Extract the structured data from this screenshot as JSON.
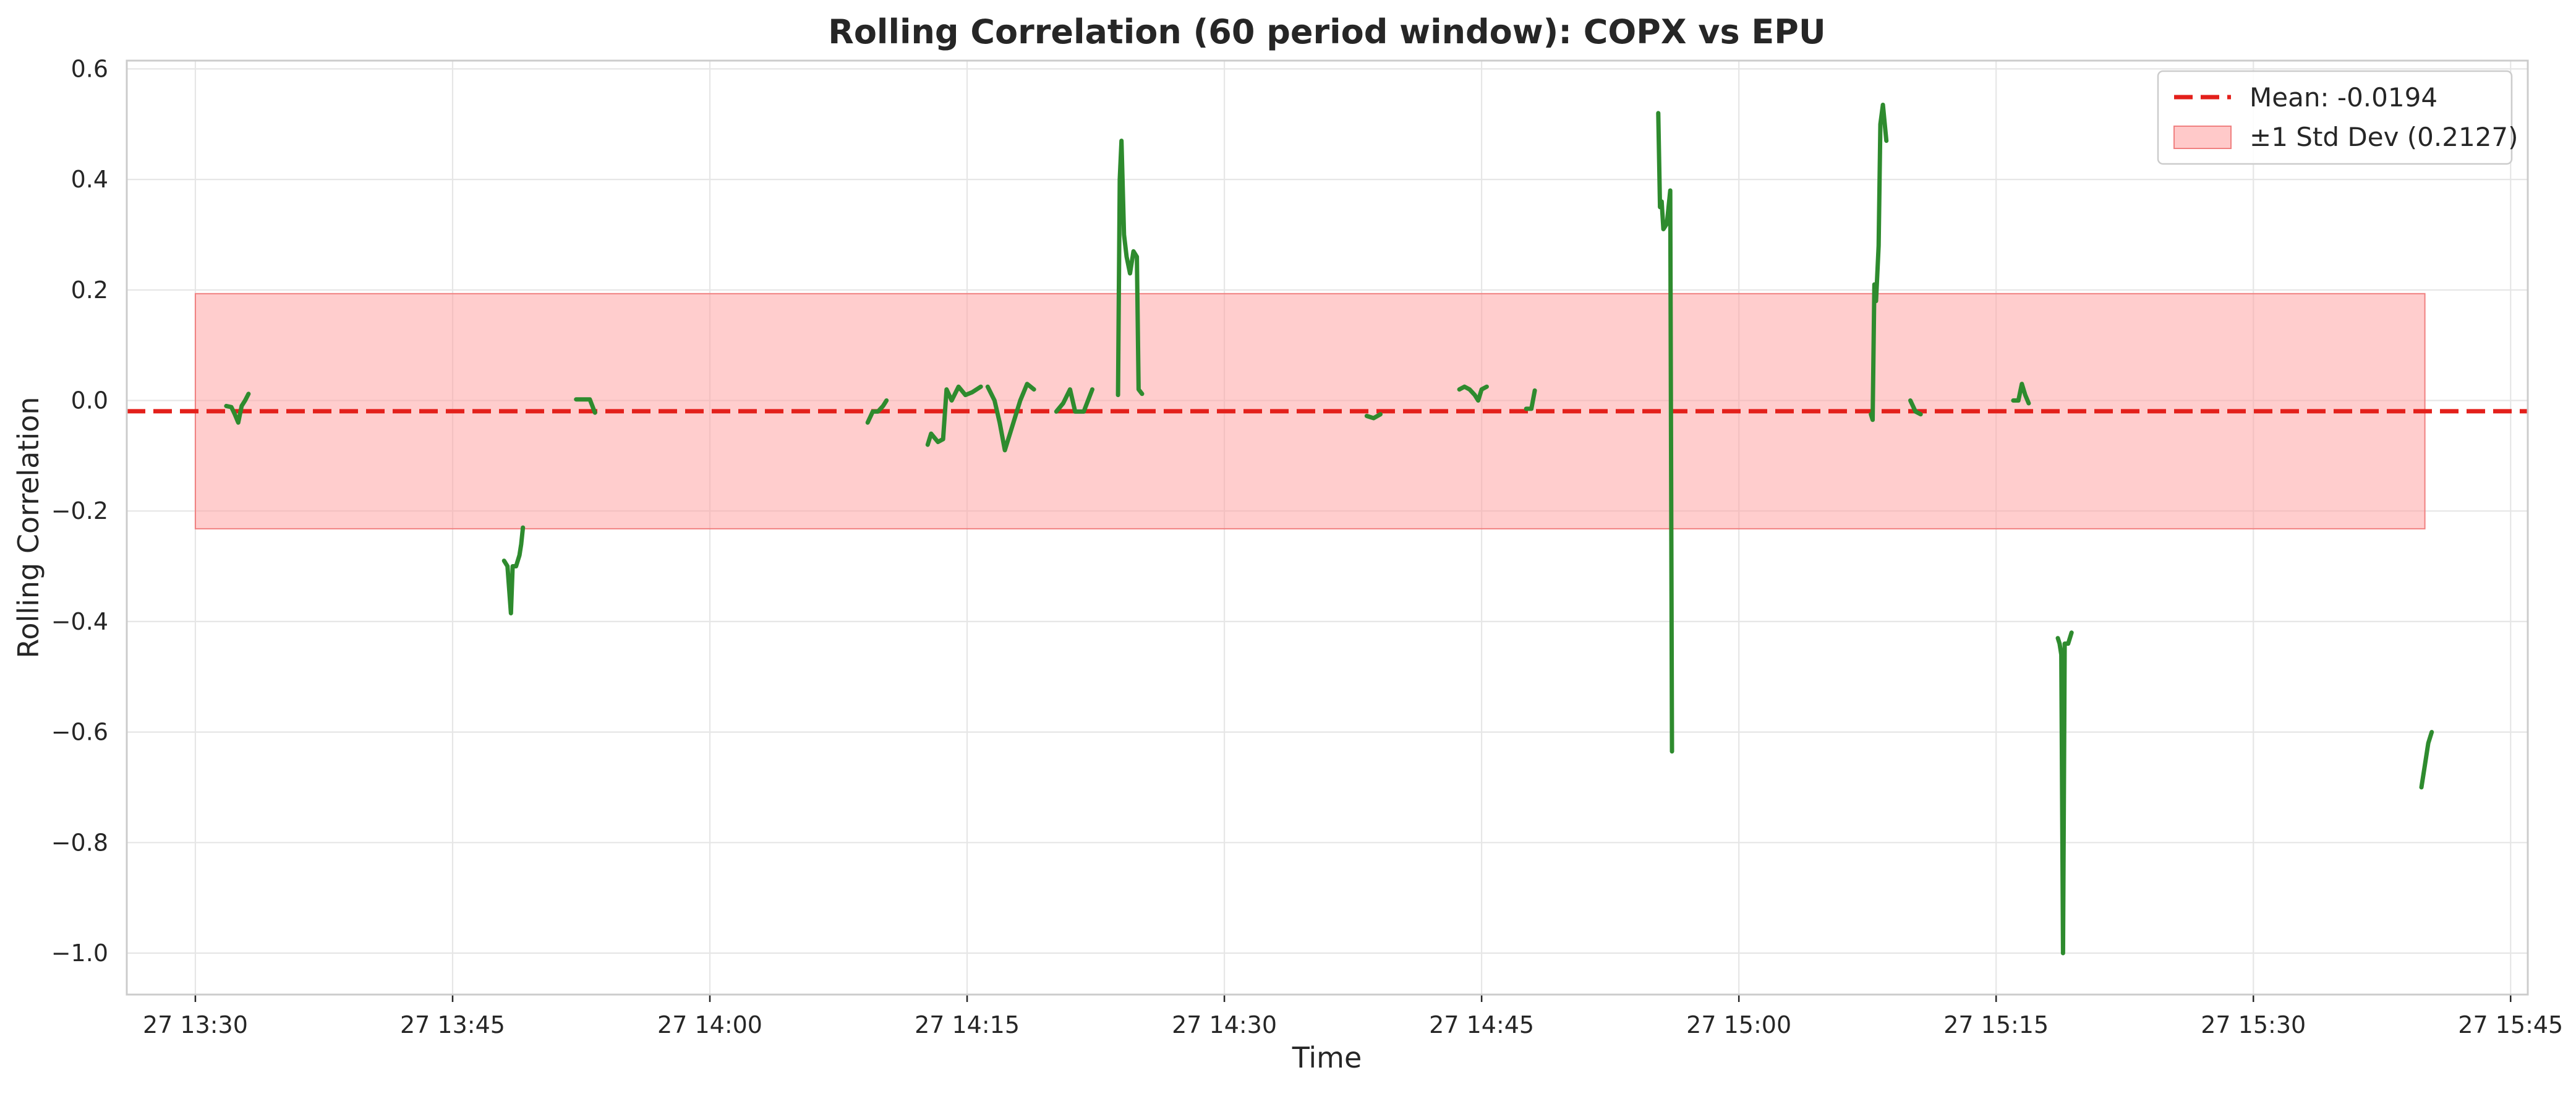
{
  "chart_data": {
    "type": "line",
    "title": "Rolling Correlation (60 period window): COPX vs EPU",
    "xlabel": "Time",
    "ylabel": "Rolling Correlation",
    "x_axis": {
      "unit": "minutes",
      "range": [
        "27 13:26",
        "27 15:46"
      ],
      "ticks": [
        {
          "t": "27 13:30",
          "label": "27 13:30"
        },
        {
          "t": "27 13:45",
          "label": "27 13:45"
        },
        {
          "t": "27 14:00",
          "label": "27 14:00"
        },
        {
          "t": "27 14:15",
          "label": "27 14:15"
        },
        {
          "t": "27 14:30",
          "label": "27 14:30"
        },
        {
          "t": "27 14:45",
          "label": "27 14:45"
        },
        {
          "t": "27 15:00",
          "label": "27 15:00"
        },
        {
          "t": "27 15:15",
          "label": "27 15:15"
        },
        {
          "t": "27 15:30",
          "label": "27 15:30"
        },
        {
          "t": "27 15:45",
          "label": "27 15:45"
        }
      ]
    },
    "y_axis": {
      "ylim": [
        -1.075,
        0.615
      ],
      "ticks": [
        0.6,
        0.4,
        0.2,
        0.0,
        -0.2,
        -0.4,
        -0.6,
        -0.8,
        -1.0
      ],
      "tick_labels": [
        "0.6",
        "0.4",
        "0.2",
        "0.0",
        "−0.2",
        "−0.4",
        "−0.6",
        "−0.8",
        "−1.0"
      ]
    },
    "grid": true,
    "legend_position": "top-right",
    "mean": {
      "label": "Mean: -0.0194",
      "value": -0.0194,
      "color": "#e3201b"
    },
    "std_band": {
      "label": "±1 Std Dev (0.2127)",
      "lower": -0.2321,
      "upper": 0.1933,
      "x_start": "27 13:30",
      "x_end": "27 15:40",
      "color": "#ff9c9c"
    },
    "series": [
      {
        "color": "#2e8b2e",
        "segments": [
          [
            [
              "27 13:31.8",
              -0.01
            ],
            [
              "27 13:32.1",
              -0.012
            ],
            [
              "27 13:32.3",
              -0.025
            ],
            [
              "27 13:32.5",
              -0.04
            ],
            [
              "27 13:32.7",
              -0.01
            ],
            [
              "27 13:32.9",
              0.0
            ],
            [
              "27 13:33.1",
              0.012
            ]
          ],
          [
            [
              "27 13:48.0",
              -0.29
            ],
            [
              "27 13:48.2",
              -0.3
            ],
            [
              "27 13:48.4",
              -0.385
            ],
            [
              "27 13:48.5",
              -0.3
            ],
            [
              "27 13:48.7",
              -0.3
            ],
            [
              "27 13:48.9",
              -0.28
            ],
            [
              "27 13:49.0",
              -0.26
            ],
            [
              "27 13:49.1",
              -0.23
            ]
          ],
          [
            [
              "27 13:52.2",
              0.002
            ],
            [
              "27 13:53.0",
              0.002
            ],
            [
              "27 13:53.3",
              -0.022
            ]
          ],
          [
            [
              "27 14:09.2",
              -0.04
            ],
            [
              "27 14:09.5",
              -0.02
            ],
            [
              "27 14:09.8",
              -0.02
            ],
            [
              "27 14:10.1",
              -0.01
            ],
            [
              "27 14:10.3",
              0.0
            ]
          ],
          [
            [
              "27 14:12.7",
              -0.08
            ],
            [
              "27 14:12.9",
              -0.06
            ],
            [
              "27 14:13.3",
              -0.075
            ],
            [
              "27 14:13.6",
              -0.07
            ],
            [
              "27 14:13.8",
              0.02
            ],
            [
              "27 14:14.1",
              0.0
            ],
            [
              "27 14:14.5",
              0.025
            ],
            [
              "27 14:14.9",
              0.01
            ],
            [
              "27 14:15.3",
              0.015
            ],
            [
              "27 14:15.8",
              0.025
            ]
          ],
          [
            [
              "27 14:16.2",
              0.025
            ],
            [
              "27 14:16.6",
              0.0
            ],
            [
              "27 14:16.9",
              -0.04
            ],
            [
              "27 14:17.2",
              -0.09
            ],
            [
              "27 14:17.5",
              -0.06
            ],
            [
              "27 14:17.8",
              -0.03
            ],
            [
              "27 14:18.1",
              0.0
            ],
            [
              "27 14:18.5",
              0.03
            ],
            [
              "27 14:18.9",
              0.02
            ]
          ],
          [
            [
              "27 14:20.2",
              -0.02
            ],
            [
              "27 14:20.6",
              -0.005
            ],
            [
              "27 14:21.0",
              0.02
            ],
            [
              "27 14:21.3",
              -0.02
            ],
            [
              "27 14:21.8",
              -0.02
            ],
            [
              "27 14:22.3",
              0.02
            ]
          ],
          [
            [
              "27 14:23.8",
              0.01
            ],
            [
              "27 14:23.9",
              0.4
            ],
            [
              "27 14:24.0",
              0.47
            ],
            [
              "27 14:24.15",
              0.3
            ],
            [
              "27 14:24.3",
              0.26
            ],
            [
              "27 14:24.5",
              0.23
            ],
            [
              "27 14:24.7",
              0.27
            ],
            [
              "27 14:24.9",
              0.26
            ],
            [
              "27 14:25.0",
              0.02
            ],
            [
              "27 14:25.2",
              0.012
            ]
          ],
          [
            [
              "27 14:38.3",
              -0.028
            ],
            [
              "27 14:38.7",
              -0.032
            ],
            [
              "27 14:39.1",
              -0.025
            ]
          ],
          [
            [
              "27 14:43.7",
              0.02
            ],
            [
              "27 14:44.0",
              0.025
            ],
            [
              "27 14:44.3",
              0.02
            ],
            [
              "27 14:44.6",
              0.01
            ],
            [
              "27 14:44.8",
              0.0
            ],
            [
              "27 14:45.0",
              0.02
            ],
            [
              "27 14:45.3",
              0.025
            ]
          ],
          [
            [
              "27 14:47.6",
              -0.015
            ],
            [
              "27 14:47.9",
              -0.015
            ],
            [
              "27 14:48.1",
              0.018
            ]
          ],
          [
            [
              "27 14:55.3",
              0.52
            ],
            [
              "27 14:55.4",
              0.35
            ],
            [
              "27 14:55.5",
              0.36
            ],
            [
              "27 14:55.6",
              0.31
            ],
            [
              "27 14:55.8",
              0.32
            ],
            [
              "27 14:56.0",
              0.38
            ],
            [
              "27 14:56.1",
              -0.635
            ]
          ],
          [
            [
              "27 15:07.7",
              -0.025
            ],
            [
              "27 15:07.8",
              -0.035
            ],
            [
              "27 15:07.9",
              0.21
            ],
            [
              "27 15:08.0",
              0.18
            ],
            [
              "27 15:08.15",
              0.28
            ],
            [
              "27 15:08.25",
              0.5
            ],
            [
              "27 15:08.4",
              0.535
            ],
            [
              "27 15:08.6",
              0.47
            ]
          ],
          [
            [
              "27 15:10.0",
              0.0
            ],
            [
              "27 15:10.3",
              -0.02
            ],
            [
              "27 15:10.6",
              -0.025
            ]
          ],
          [
            [
              "27 15:16.0",
              0.0
            ],
            [
              "27 15:16.3",
              0.0
            ],
            [
              "27 15:16.5",
              0.03
            ],
            [
              "27 15:16.7",
              0.01
            ],
            [
              "27 15:16.9",
              -0.005
            ]
          ],
          [
            [
              "27 15:18.6",
              -0.43
            ],
            [
              "27 15:18.7",
              -0.44
            ],
            [
              "27 15:18.8",
              -0.46
            ],
            [
              "27 15:18.9",
              -1.0
            ],
            [
              "27 15:19.0",
              -0.44
            ],
            [
              "27 15:19.2",
              -0.44
            ],
            [
              "27 15:19.4",
              -0.42
            ]
          ],
          [
            [
              "27 15:39.8",
              -0.7
            ],
            [
              "27 15:40.0",
              -0.66
            ],
            [
              "27 15:40.2",
              -0.62
            ],
            [
              "27 15:40.4",
              -0.6
            ]
          ]
        ]
      }
    ]
  }
}
